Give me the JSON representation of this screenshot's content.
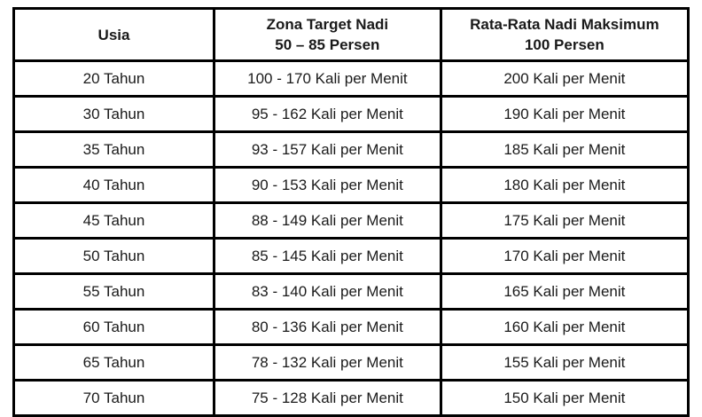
{
  "header": {
    "col1_line1": "Usia",
    "col2_line1": "Zona Target Nadi",
    "col2_line2": "50 – 85 Persen",
    "col3_line1": "Rata-Rata Nadi Maksimum",
    "col3_line2": "100 Persen"
  },
  "chart_data": {
    "type": "table",
    "columns": [
      "Usia",
      "Zona Target Nadi 50 – 85 Persen",
      "Rata-Rata Nadi Maksimum 100 Persen"
    ],
    "rows": [
      [
        "20 Tahun",
        "100 - 170 Kali per Menit",
        "200 Kali per Menit"
      ],
      [
        "30 Tahun",
        "95 - 162 Kali per Menit",
        "190 Kali per Menit"
      ],
      [
        "35 Tahun",
        "93 - 157 Kali per Menit",
        "185 Kali per Menit"
      ],
      [
        "40 Tahun",
        "90 - 153 Kali per Menit",
        "180 Kali per Menit"
      ],
      [
        "45 Tahun",
        "88 - 149 Kali per Menit",
        "175 Kali per Menit"
      ],
      [
        "50 Tahun",
        "85 - 145 Kali per Menit",
        "170 Kali per Menit"
      ],
      [
        "55 Tahun",
        "83 - 140 Kali per Menit",
        "165 Kali per Menit"
      ],
      [
        "60 Tahun",
        "80 - 136 Kali per Menit",
        "160 Kali per Menit"
      ],
      [
        "65 Tahun",
        "78 - 132 Kali per Menit",
        "155 Kali per Menit"
      ],
      [
        "70 Tahun",
        "75 - 128 Kali per Menit",
        "150 Kali per Menit"
      ]
    ],
    "ages_years": [
      20,
      30,
      35,
      40,
      45,
      50,
      55,
      60,
      65,
      70
    ],
    "target_zone_low_bpm": [
      100,
      95,
      93,
      90,
      88,
      85,
      83,
      80,
      78,
      75
    ],
    "target_zone_high_bpm": [
      170,
      162,
      157,
      153,
      149,
      145,
      140,
      136,
      132,
      128
    ],
    "max_rate_bpm": [
      200,
      190,
      185,
      180,
      175,
      170,
      165,
      160,
      155,
      150
    ],
    "colors": {
      "border": "#000000",
      "background": "#ffffff",
      "text": "#1a1a1a"
    }
  }
}
